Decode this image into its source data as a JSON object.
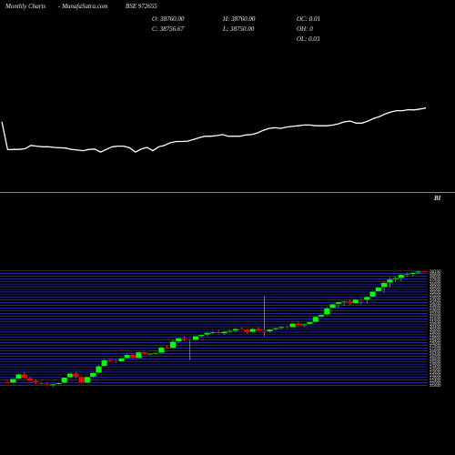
{
  "header": {
    "period": "Monthly Charts",
    "site": "-  MunafaSutra.com",
    "symbol": "BSE 972655",
    "open": "O: 38760.00",
    "close": "C: 38756.67",
    "high": "H: 38760.00",
    "low": "L: 38750.00",
    "oc": "OC: 0.01",
    "oh": "OH: 0",
    "ol": "OL: 0.03"
  },
  "indicator_label": "BI",
  "colors": {
    "background": "#000000",
    "line": "#ffffff",
    "separator": "#ff6a00",
    "up": "#00ff00",
    "down": "#ff0000",
    "grid": "#3a3aff"
  },
  "chart_data": [
    {
      "type": "line",
      "title": "",
      "series": [
        {
          "values": [
            32400,
            23900,
            24000,
            24000,
            24200,
            25200,
            25000,
            24800,
            24800,
            24600,
            24500,
            24400,
            24000,
            23800,
            23600,
            24000,
            24100,
            23200,
            24000,
            24800,
            25000,
            25000,
            24500,
            23200,
            24100,
            24600,
            23600,
            24800,
            25200,
            26000,
            26400,
            26400,
            26500,
            27000,
            27600,
            28000,
            28000,
            28200,
            28500,
            28000,
            28000,
            28000,
            28400,
            28500,
            29000,
            29800,
            30400,
            30600,
            30400,
            30800,
            31000,
            31200,
            31400,
            31400,
            31200,
            31200,
            31200,
            31400,
            31800,
            32400,
            32600,
            32000,
            32000,
            32600,
            33400,
            34000,
            34800,
            35400,
            35800,
            35800,
            36100,
            36000,
            36300,
            36600
          ]
        }
      ]
    },
    {
      "type": "candlestick",
      "title": "",
      "ylim": [
        21000,
        39000
      ],
      "y_ticks": [
        38760,
        38400,
        38000,
        37600,
        37200,
        36800,
        36400,
        36000,
        35600,
        35200,
        34800,
        34400,
        34000,
        33600,
        33200,
        32800,
        32400,
        32000,
        31600,
        31200,
        30800,
        30400,
        30000,
        29600,
        29200,
        28800,
        28400,
        28000,
        27600,
        27200,
        26800,
        26400,
        26000,
        25600,
        25200,
        24800,
        24400,
        24000,
        23600,
        23200,
        22800,
        22400,
        22000,
        21600
      ],
      "candles": [
        {
          "o": 22100,
          "h": 22300,
          "l": 21900,
          "c": 22000
        },
        {
          "o": 22000,
          "h": 22700,
          "l": 21900,
          "c": 22600
        },
        {
          "o": 22600,
          "h": 23400,
          "l": 22500,
          "c": 23300
        },
        {
          "o": 23300,
          "h": 23600,
          "l": 22600,
          "c": 22700
        },
        {
          "o": 22700,
          "h": 22900,
          "l": 22200,
          "c": 22300
        },
        {
          "o": 22300,
          "h": 22500,
          "l": 21800,
          "c": 22000
        },
        {
          "o": 22000,
          "h": 22200,
          "l": 21700,
          "c": 21800
        },
        {
          "o": 21800,
          "h": 22000,
          "l": 21500,
          "c": 21600
        },
        {
          "o": 21600,
          "h": 21900,
          "l": 21400,
          "c": 21800
        },
        {
          "o": 21800,
          "h": 22100,
          "l": 21700,
          "c": 22000
        },
        {
          "o": 22000,
          "h": 22900,
          "l": 21900,
          "c": 22800
        },
        {
          "o": 22800,
          "h": 23500,
          "l": 22700,
          "c": 23400
        },
        {
          "o": 23400,
          "h": 23600,
          "l": 22700,
          "c": 22900
        },
        {
          "o": 22900,
          "h": 23000,
          "l": 21900,
          "c": 22000
        },
        {
          "o": 22000,
          "h": 23000,
          "l": 21900,
          "c": 22900
        },
        {
          "o": 22900,
          "h": 23600,
          "l": 22800,
          "c": 23500
        },
        {
          "o": 23500,
          "h": 24700,
          "l": 23400,
          "c": 24500
        },
        {
          "o": 24500,
          "h": 25600,
          "l": 24400,
          "c": 25400
        },
        {
          "o": 25400,
          "h": 25600,
          "l": 25100,
          "c": 25300
        },
        {
          "o": 25300,
          "h": 25500,
          "l": 25000,
          "c": 25200
        },
        {
          "o": 25200,
          "h": 25800,
          "l": 25100,
          "c": 25700
        },
        {
          "o": 25700,
          "h": 26400,
          "l": 25600,
          "c": 26200
        },
        {
          "o": 26200,
          "h": 26300,
          "l": 25600,
          "c": 25700
        },
        {
          "o": 25700,
          "h": 26700,
          "l": 25600,
          "c": 26600
        },
        {
          "o": 26600,
          "h": 26700,
          "l": 26200,
          "c": 26300
        },
        {
          "o": 26300,
          "h": 26500,
          "l": 26100,
          "c": 26400
        },
        {
          "o": 26400,
          "h": 26600,
          "l": 26200,
          "c": 26500
        },
        {
          "o": 26500,
          "h": 27400,
          "l": 26400,
          "c": 27300
        },
        {
          "o": 27300,
          "h": 27600,
          "l": 27100,
          "c": 27200
        },
        {
          "o": 27200,
          "h": 28500,
          "l": 27100,
          "c": 28200
        },
        {
          "o": 28200,
          "h": 28800,
          "l": 28000,
          "c": 28700
        },
        {
          "o": 28700,
          "h": 28900,
          "l": 28300,
          "c": 28500
        },
        {
          "o": 28500,
          "h": 28600,
          "l": 25400,
          "c": 28400
        },
        {
          "o": 28400,
          "h": 29100,
          "l": 28300,
          "c": 29000
        },
        {
          "o": 29000,
          "h": 29300,
          "l": 28800,
          "c": 29200
        },
        {
          "o": 29200,
          "h": 29600,
          "l": 29000,
          "c": 29500
        },
        {
          "o": 29500,
          "h": 29800,
          "l": 29300,
          "c": 29600
        },
        {
          "o": 29600,
          "h": 29900,
          "l": 29300,
          "c": 29400
        },
        {
          "o": 29400,
          "h": 29800,
          "l": 29200,
          "c": 29700
        },
        {
          "o": 29700,
          "h": 30000,
          "l": 29500,
          "c": 29800
        },
        {
          "o": 29800,
          "h": 30200,
          "l": 29600,
          "c": 30100
        },
        {
          "o": 30100,
          "h": 30300,
          "l": 29900,
          "c": 30000
        },
        {
          "o": 30000,
          "h": 30100,
          "l": 29400,
          "c": 29600
        },
        {
          "o": 29600,
          "h": 30200,
          "l": 29500,
          "c": 30100
        },
        {
          "o": 30100,
          "h": 30300,
          "l": 29700,
          "c": 29800
        },
        {
          "o": 29800,
          "h": 35000,
          "l": 29000,
          "c": 29700
        },
        {
          "o": 29700,
          "h": 30100,
          "l": 29500,
          "c": 30000
        },
        {
          "o": 30000,
          "h": 30300,
          "l": 29800,
          "c": 30200
        },
        {
          "o": 30200,
          "h": 30500,
          "l": 30000,
          "c": 30400
        },
        {
          "o": 30400,
          "h": 30600,
          "l": 30100,
          "c": 30300
        },
        {
          "o": 30300,
          "h": 31000,
          "l": 30200,
          "c": 30900
        },
        {
          "o": 30900,
          "h": 31100,
          "l": 30500,
          "c": 30600
        },
        {
          "o": 30600,
          "h": 30900,
          "l": 30400,
          "c": 30800
        },
        {
          "o": 30800,
          "h": 31200,
          "l": 30700,
          "c": 31100
        },
        {
          "o": 31100,
          "h": 32000,
          "l": 31000,
          "c": 31900
        },
        {
          "o": 31900,
          "h": 32300,
          "l": 31700,
          "c": 32200
        },
        {
          "o": 32200,
          "h": 33400,
          "l": 32100,
          "c": 33200
        },
        {
          "o": 33200,
          "h": 33900,
          "l": 33100,
          "c": 33800
        },
        {
          "o": 33800,
          "h": 34200,
          "l": 33200,
          "c": 34100
        },
        {
          "o": 34100,
          "h": 34300,
          "l": 33500,
          "c": 34200
        },
        {
          "o": 34200,
          "h": 34400,
          "l": 33700,
          "c": 33900
        },
        {
          "o": 33900,
          "h": 34600,
          "l": 33800,
          "c": 34500
        },
        {
          "o": 34500,
          "h": 34700,
          "l": 33700,
          "c": 34400
        },
        {
          "o": 34400,
          "h": 35000,
          "l": 33900,
          "c": 34900
        },
        {
          "o": 34900,
          "h": 35800,
          "l": 34800,
          "c": 35700
        },
        {
          "o": 35700,
          "h": 36400,
          "l": 35600,
          "c": 36300
        },
        {
          "o": 36300,
          "h": 37200,
          "l": 35500,
          "c": 37000
        },
        {
          "o": 37000,
          "h": 37800,
          "l": 36300,
          "c": 37500
        },
        {
          "o": 37500,
          "h": 37900,
          "l": 37100,
          "c": 37700
        },
        {
          "o": 37700,
          "h": 38300,
          "l": 37200,
          "c": 38200
        },
        {
          "o": 38200,
          "h": 38500,
          "l": 37900,
          "c": 38300
        },
        {
          "o": 38300,
          "h": 38600,
          "l": 38000,
          "c": 38500
        },
        {
          "o": 38500,
          "h": 38800,
          "l": 38300,
          "c": 38700
        },
        {
          "o": 38760,
          "h": 38760,
          "l": 38750,
          "c": 38756.67
        }
      ]
    }
  ]
}
